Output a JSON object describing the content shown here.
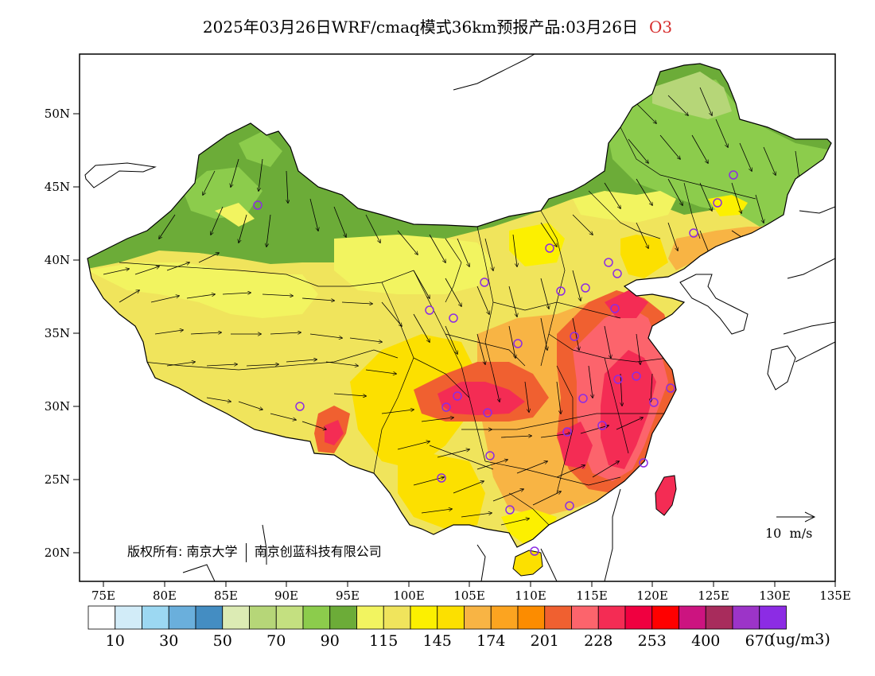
{
  "title": {
    "main": "2025年03月26日WRF/cmaq模式36km预报产品:03月26日",
    "species": "O3"
  },
  "map": {
    "lat_ticks": [
      "50N",
      "45N",
      "40N",
      "35N",
      "30N",
      "25N",
      "20N"
    ],
    "lon_ticks": [
      "75E",
      "80E",
      "85E",
      "90E",
      "95E",
      "100E",
      "105E",
      "110E",
      "115E",
      "120E",
      "125E",
      "130E",
      "135E"
    ],
    "lon_range": [
      73,
      135
    ],
    "lat_range": [
      18,
      54
    ]
  },
  "copyright": {
    "prefix": "版权所有:",
    "org1": "南京大学",
    "org2": "南京创蓝科技有限公司"
  },
  "wind_scale": {
    "label": "10  m/s"
  },
  "colorbar": {
    "colors": [
      "#ffffff",
      "#d2ecf8",
      "#9cd8f2",
      "#6aafdc",
      "#448dc2",
      "#dcebb4",
      "#b6d678",
      "#c4e080",
      "#8ccc4c",
      "#6cac38",
      "#f2f460",
      "#f0e45c",
      "#fcf000",
      "#fce000",
      "#f8b444",
      "#fca420",
      "#fc8c00",
      "#f06030",
      "#fc646c",
      "#f42c54",
      "#f00040",
      "#ff0000",
      "#cc1480",
      "#a82c5c",
      "#9c34c8",
      "#8c2ce4"
    ],
    "labels": [
      "10",
      "30",
      "50",
      "70",
      "90",
      "115",
      "145",
      "174",
      "201",
      "228",
      "253",
      "400",
      "670"
    ],
    "unit": "(ug/m3)"
  },
  "legend_colors": {
    "green_dark": "#6cac38",
    "green": "#8ccc4c",
    "yellow": "#fce000",
    "orange": "#fca420",
    "red": "#f42c54",
    "station_marker": "#8c2ce4"
  }
}
